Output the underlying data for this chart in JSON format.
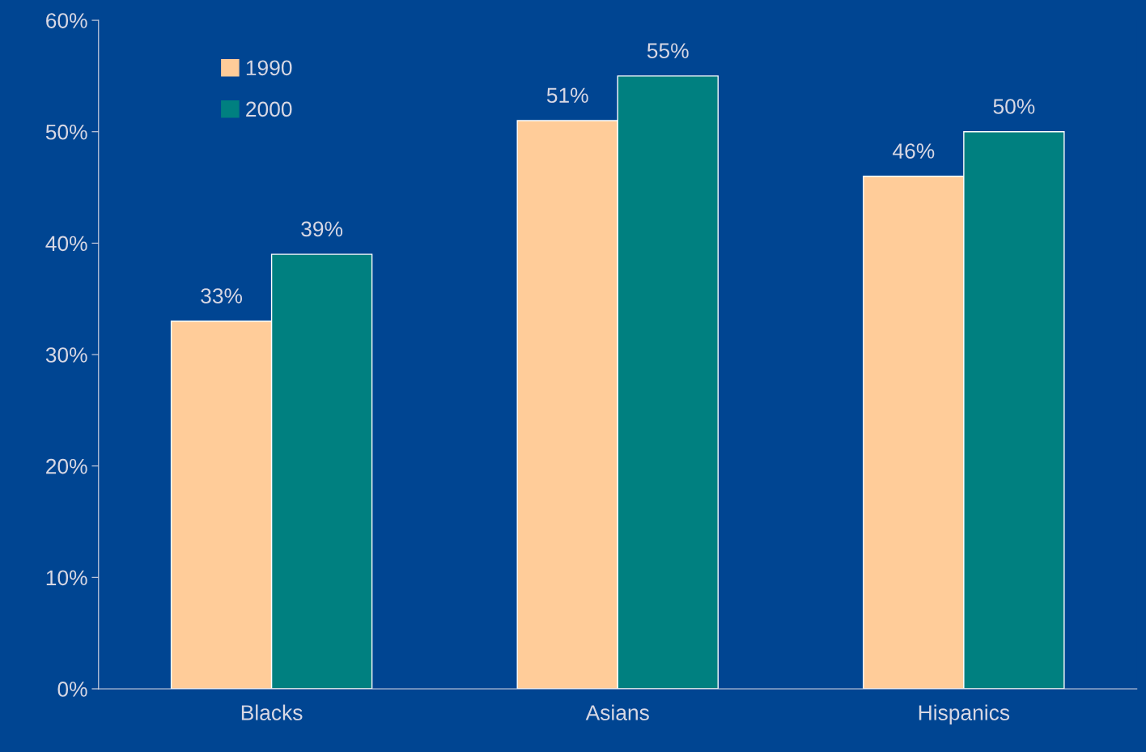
{
  "chart_data": {
    "type": "bar",
    "categories": [
      "Blacks",
      "Asians",
      "Hispanics"
    ],
    "series": [
      {
        "name": "1990",
        "color": "#ffcc99",
        "values": [
          33,
          51,
          46
        ],
        "value_labels": [
          "33%",
          "51%",
          "46%"
        ]
      },
      {
        "name": "2000",
        "color": "#008080",
        "values": [
          39,
          55,
          50
        ],
        "value_labels": [
          "39%",
          "55%",
          "50%"
        ]
      }
    ],
    "ylim": [
      0,
      60
    ],
    "yticks": [
      {
        "value": 0,
        "label": "0%"
      },
      {
        "value": 10,
        "label": "10%"
      },
      {
        "value": 20,
        "label": "20%"
      },
      {
        "value": 30,
        "label": "30%"
      },
      {
        "value": 40,
        "label": "40%"
      },
      {
        "value": 50,
        "label": "50%"
      },
      {
        "value": 60,
        "label": "60%"
      }
    ],
    "grid": false,
    "legend": "top left"
  }
}
